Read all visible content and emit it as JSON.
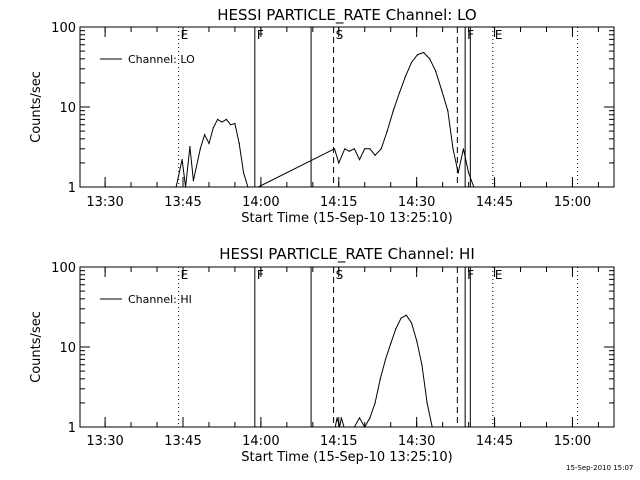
{
  "footer_timestamp": "15-Sep-2010 15:07",
  "chart_data": [
    {
      "type": "line",
      "title": "HESSI PARTICLE_RATE Channel: LO",
      "xlabel": "Start Time (15-Sep-10 13:25:10)",
      "ylabel": "Counts/sec",
      "yscale": "log",
      "ylim": [
        1,
        100
      ],
      "xlim": [
        "13:25:10",
        "15:08:00"
      ],
      "x_ticks": [
        "13:30",
        "13:45",
        "14:00",
        "14:15",
        "14:30",
        "14:45",
        "15:00"
      ],
      "y_ticks": [
        "1",
        "10",
        "100"
      ],
      "legend": "top-left",
      "series": [
        {
          "name": "Channel: LO",
          "x": [
            "13:43:40",
            "13:44:50",
            "13:45:30",
            "13:46:20",
            "13:47:00",
            "13:48:20",
            "13:49:10",
            "13:50:00",
            "13:50:50",
            "13:51:40",
            "13:52:30",
            "13:53:20",
            "13:54:10",
            "13:55:00",
            "13:55:50",
            "13:56:40",
            "13:57:30",
            "13:58:20",
            "13:59:30",
            "14:14:10",
            "14:15:00",
            "14:16:10",
            "14:17:00",
            "14:18:00",
            "14:19:00",
            "14:20:00",
            "14:21:00",
            "14:22:00",
            "14:23:10",
            "14:24:20",
            "14:25:30",
            "14:26:40",
            "14:27:50",
            "14:29:00",
            "14:30:10",
            "14:31:20",
            "14:32:30",
            "14:33:40",
            "14:34:50",
            "14:36:00",
            "14:37:00",
            "14:38:00",
            "14:39:00",
            "14:40:00",
            "14:41:00"
          ],
          "y": [
            1,
            2.2,
            1,
            3.2,
            1.2,
            3,
            4.5,
            3.5,
            5.5,
            7,
            6.5,
            7,
            6,
            6.2,
            3.5,
            1.5,
            1,
            1,
            1,
            3,
            2,
            3,
            2.8,
            3,
            2.2,
            3,
            3,
            2.5,
            3,
            5,
            9,
            15,
            24,
            36,
            45,
            48,
            40,
            28,
            16,
            9,
            3,
            1.5,
            3,
            1.5,
            1
          ]
        }
      ],
      "markers": [
        {
          "time": "13:44:10",
          "style": "dotted",
          "label": "E"
        },
        {
          "time": "13:58:50",
          "style": "solid",
          "label": "F"
        },
        {
          "time": "14:09:40",
          "style": "solid",
          "label": ""
        },
        {
          "time": "14:14:00",
          "style": "dashed",
          "label": "S"
        },
        {
          "time": "14:37:50",
          "style": "dashed",
          "label": ""
        },
        {
          "time": "14:39:20",
          "style": "solid",
          "label": "F"
        },
        {
          "time": "14:40:20",
          "style": "solid",
          "label": ""
        },
        {
          "time": "14:44:40",
          "style": "dotted",
          "label": "E"
        },
        {
          "time": "15:01:00",
          "style": "dotted",
          "label": ""
        }
      ]
    },
    {
      "type": "line",
      "title": "HESSI PARTICLE_RATE Channel: HI",
      "xlabel": "Start Time (15-Sep-10 13:25:10)",
      "ylabel": "Counts/sec",
      "yscale": "log",
      "ylim": [
        1,
        100
      ],
      "xlim": [
        "13:25:10",
        "15:08:00"
      ],
      "x_ticks": [
        "13:30",
        "13:45",
        "14:00",
        "14:15",
        "14:30",
        "14:45",
        "15:00"
      ],
      "y_ticks": [
        "1",
        "10",
        "100"
      ],
      "legend": "top-left",
      "series": [
        {
          "name": "Channel: HI",
          "x": [
            "14:14:20",
            "14:14:40",
            "14:15:10",
            "14:15:30",
            "14:16:00",
            "14:17:10",
            "14:18:00",
            "14:19:00",
            "14:20:00",
            "14:21:00",
            "14:22:00",
            "14:23:00",
            "14:24:00",
            "14:25:00",
            "14:26:00",
            "14:27:00",
            "14:28:00",
            "14:29:00",
            "14:30:00",
            "14:31:00",
            "14:32:00",
            "14:33:00"
          ],
          "y": [
            1,
            1.3,
            1,
            1.3,
            1,
            1,
            1,
            1.3,
            1,
            1.3,
            2,
            4,
            7,
            11,
            17,
            23,
            25,
            20,
            12,
            6,
            2,
            1
          ]
        }
      ],
      "markers": [
        {
          "time": "13:44:10",
          "style": "dotted",
          "label": "E"
        },
        {
          "time": "13:58:50",
          "style": "solid",
          "label": "F"
        },
        {
          "time": "14:09:40",
          "style": "solid",
          "label": ""
        },
        {
          "time": "14:14:00",
          "style": "dashed",
          "label": "S"
        },
        {
          "time": "14:37:50",
          "style": "dashed",
          "label": ""
        },
        {
          "time": "14:39:20",
          "style": "solid",
          "label": "F"
        },
        {
          "time": "14:40:20",
          "style": "solid",
          "label": ""
        },
        {
          "time": "14:44:40",
          "style": "dotted",
          "label": "E"
        },
        {
          "time": "15:01:00",
          "style": "dotted",
          "label": ""
        }
      ]
    }
  ]
}
